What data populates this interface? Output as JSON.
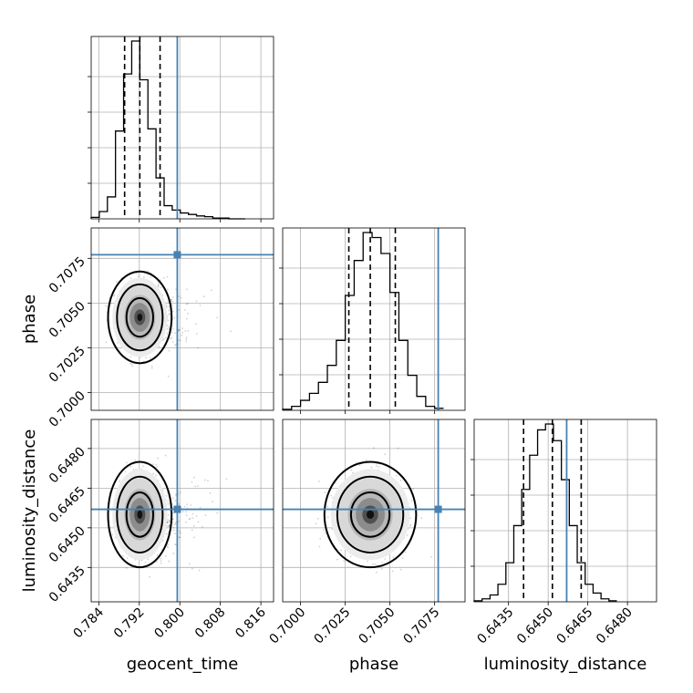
{
  "chart_data": {
    "type": "corner",
    "parameters": [
      "geocent_time",
      "phase",
      "luminosity_distance"
    ],
    "truth_color": "#4682b4",
    "truths": {
      "geocent_time": 0.7995,
      "phase": 0.7077,
      "luminosity_distance": 0.6457
    },
    "axes": {
      "geocent_time": {
        "range": [
          0.7825,
          0.8185
        ],
        "ticks": [
          0.784,
          0.792,
          0.8,
          0.808,
          0.816
        ],
        "tick_labels": [
          "0.784",
          "0.792",
          "0.800",
          "0.808",
          "0.816"
        ]
      },
      "phase": {
        "range": [
          0.699,
          0.7092
        ],
        "ticks": [
          0.7,
          0.7025,
          0.705,
          0.7075
        ],
        "tick_labels": [
          "0.7000",
          "0.7025",
          "0.7050",
          "0.7075"
        ]
      },
      "luminosity_distance": {
        "range": [
          0.6422,
          0.6491
        ],
        "ticks": [
          0.6435,
          0.645,
          0.6465,
          0.648
        ],
        "tick_labels": [
          "0.6435",
          "0.6450",
          "0.6465",
          "0.6480"
        ]
      }
    },
    "marginals": {
      "geocent_time": {
        "bin_edges": [
          0.7825,
          0.7841,
          0.7857,
          0.7873,
          0.7889,
          0.7905,
          0.7921,
          0.7937,
          0.7953,
          0.7969,
          0.7985,
          0.8001,
          0.8017,
          0.8033,
          0.8049,
          0.8065,
          0.8081,
          0.8097,
          0.8113,
          0.8129
        ],
        "counts": [
          2,
          10,
          30,
          120,
          198,
          243,
          190,
          123,
          56,
          18,
          12,
          8,
          6,
          4,
          3,
          1,
          1,
          0,
          0
        ],
        "quantiles": [
          0.7891,
          0.7921,
          0.7961
        ]
      },
      "phase": {
        "bin_edges": [
          0.699,
          0.6995,
          0.7,
          0.7005,
          0.701,
          0.7015,
          0.702,
          0.7025,
          0.703,
          0.7035,
          0.704,
          0.7045,
          0.705,
          0.7055,
          0.706,
          0.7065,
          0.707,
          0.7075,
          0.708
        ],
        "counts": [
          1,
          4,
          10,
          17,
          28,
          45,
          70,
          115,
          150,
          178,
          173,
          157,
          118,
          70,
          35,
          14,
          4,
          2
        ],
        "quantiles": [
          0.7027,
          0.7039,
          0.7053
        ]
      },
      "luminosity_distance": {
        "bin_edges": [
          0.6422,
          0.6425,
          0.6428,
          0.6431,
          0.6434,
          0.6437,
          0.644,
          0.6443,
          0.6446,
          0.6449,
          0.6452,
          0.6455,
          0.6458,
          0.6461,
          0.6464,
          0.6467,
          0.647,
          0.6473,
          0.6476
        ],
        "counts": [
          1,
          3,
          7,
          18,
          40,
          78,
          115,
          150,
          176,
          182,
          165,
          125,
          78,
          40,
          18,
          9,
          3,
          1
        ],
        "quantiles": [
          0.64407,
          0.64516,
          0.64625
        ]
      }
    },
    "joint": [
      {
        "x": "geocent_time",
        "y": "phase",
        "center": [
          0.7921,
          0.7042
        ],
        "spread": [
          0.0022,
          0.0009
        ]
      },
      {
        "x": "geocent_time",
        "y": "luminosity_distance",
        "center": [
          0.7921,
          0.6455
        ],
        "spread": [
          0.0022,
          0.0007
        ]
      },
      {
        "x": "phase",
        "y": "luminosity_distance",
        "center": [
          0.7039,
          0.6455
        ],
        "spread": [
          0.0009,
          0.0007
        ]
      }
    ],
    "grid": true
  }
}
